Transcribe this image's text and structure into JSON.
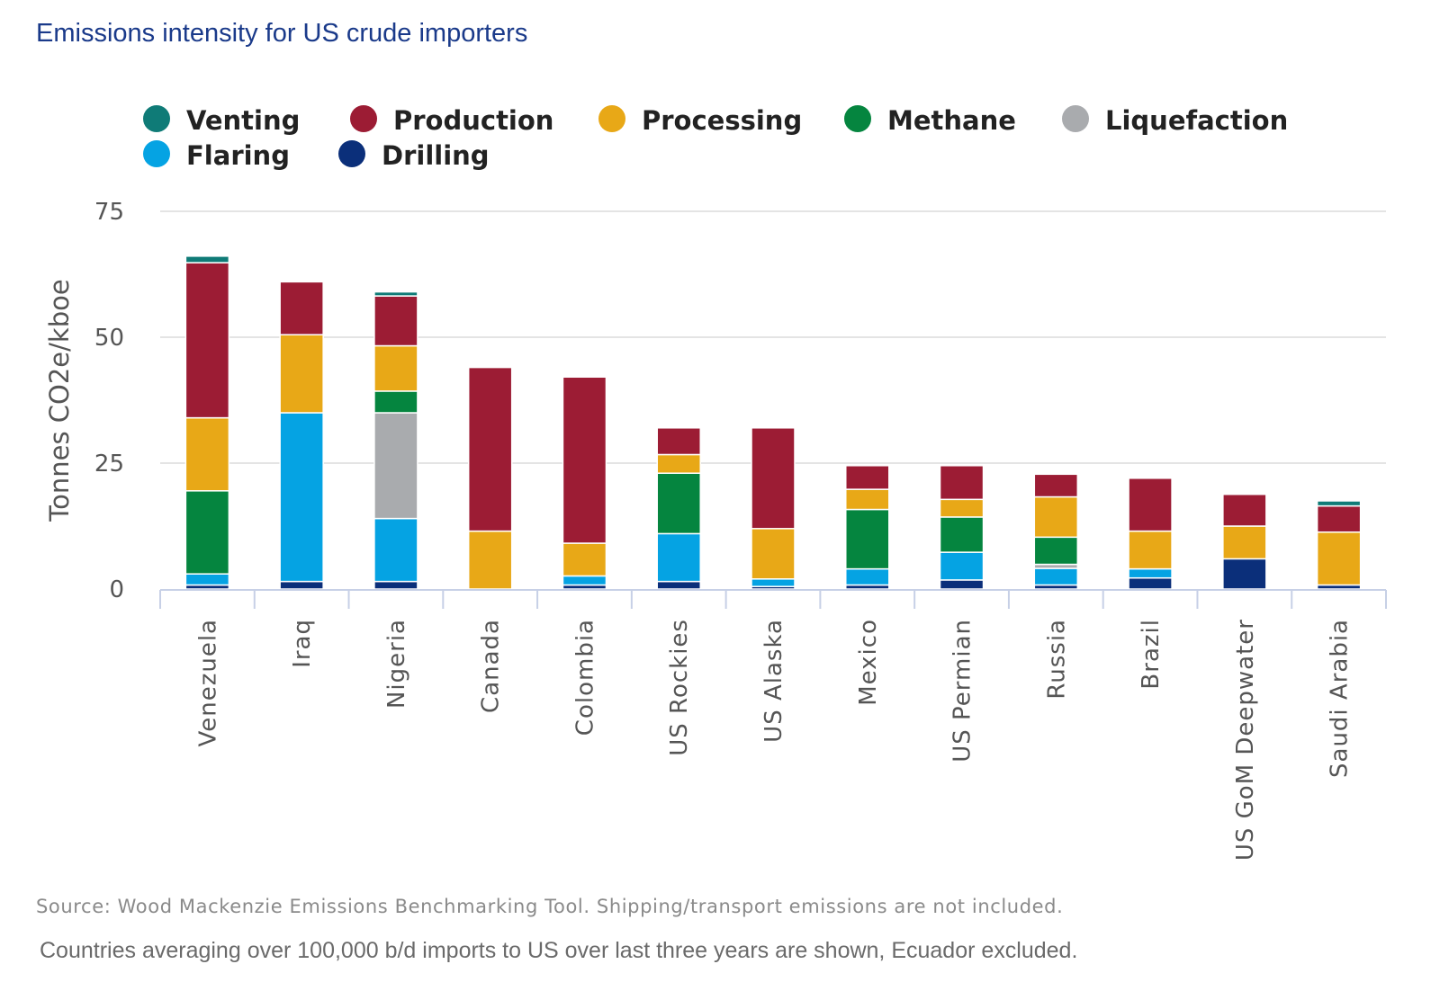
{
  "title": "Emissions intensity for US crude importers",
  "source_note": "Source: Wood Mackenzie Emissions Benchmarking Tool. Shipping/transport emissions are not included.",
  "footnote": "Countries averaging over 100,000 b/d imports to US over last three years are shown, Ecuador excluded.",
  "colors": {
    "title": "#1a3a8a",
    "axis_text": "#555555",
    "grid": "#e4e4e4",
    "axis_line": "#c7d0e6",
    "source": "#8a8a8a",
    "note": "#6a6a6a"
  },
  "chart_data": {
    "type": "bar",
    "stacked": true,
    "title": "Emissions intensity for US crude importers",
    "ylabel": "Tonnes CO2e/kboe",
    "xlabel": "",
    "ylim": [
      0,
      75
    ],
    "yticks": [
      0,
      25,
      50,
      75
    ],
    "grid": true,
    "legend_position": "top",
    "categories": [
      "Venezuela",
      "Iraq",
      "Nigeria",
      "Canada",
      "Colombia",
      "US Rockies",
      "US Alaska",
      "Mexico",
      "US Permian",
      "Russia",
      "Brazil",
      "US GoM Deepwater",
      "Saudi Arabia"
    ],
    "legend_order": [
      "Venting",
      "Production",
      "Processing",
      "Methane",
      "Liquefaction",
      "Flaring",
      "Drilling"
    ],
    "series": [
      {
        "name": "Drilling",
        "color": "#0b2f7a",
        "values": [
          0.8,
          1.5,
          1.5,
          0,
          0.8,
          1.5,
          0.5,
          0.8,
          1.8,
          0.8,
          2.2,
          6,
          0.8
        ]
      },
      {
        "name": "Flaring",
        "color": "#05a3e3",
        "values": [
          2.2,
          33.5,
          12.5,
          0,
          1.8,
          9.5,
          1.5,
          3.2,
          5.5,
          3.3,
          1.8,
          0,
          0
        ]
      },
      {
        "name": "Liquefaction",
        "color": "#a9abae",
        "values": [
          0,
          0,
          21,
          0,
          0,
          0,
          0,
          0,
          0,
          0.8,
          0,
          0,
          0
        ]
      },
      {
        "name": "Methane",
        "color": "#05853f",
        "values": [
          16.5,
          0,
          4.3,
          0,
          0,
          12,
          0,
          11.8,
          7,
          5.4,
          0,
          0,
          0
        ]
      },
      {
        "name": "Processing",
        "color": "#e8a817",
        "values": [
          14.5,
          15.5,
          9,
          11.5,
          6.5,
          3.7,
          10,
          4,
          3.5,
          8,
          7.5,
          6.5,
          10.5
        ]
      },
      {
        "name": "Production",
        "color": "#9c1c34",
        "values": [
          30.8,
          10.5,
          9.9,
          32.5,
          33,
          5.3,
          20,
          4.7,
          6.7,
          4.5,
          10.5,
          6.3,
          5.2
        ]
      },
      {
        "name": "Venting",
        "color": "#0f7b77",
        "values": [
          1.3,
          0,
          0.8,
          0,
          0,
          0,
          0,
          0,
          0,
          0,
          0,
          0,
          1
        ]
      }
    ]
  }
}
